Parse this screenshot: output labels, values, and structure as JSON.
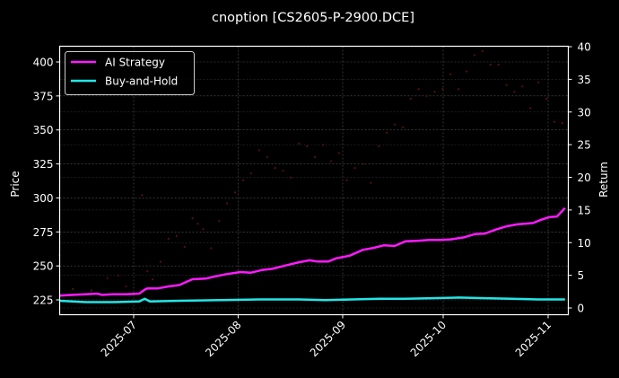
{
  "title": "cnoption [CS2605-P-2900.DCE]",
  "chart_data": {
    "type": "line",
    "title": "cnoption [CS2605-P-2900.DCE]",
    "xlabel": "",
    "ylabel_left": "Price",
    "ylabel_right": "Return",
    "x_ticks": [
      "2025-07",
      "2025-08",
      "2025-09",
      "2025-10",
      "2025-11"
    ],
    "x_range": [
      "2025-06-09",
      "2025-11-06"
    ],
    "ylim_left": [
      213,
      413
    ],
    "yticks_left": [
      225,
      250,
      275,
      300,
      325,
      350,
      375,
      400
    ],
    "ylim_right": [
      -1,
      40
    ],
    "yticks_right": [
      0,
      5,
      10,
      15,
      20,
      25,
      30,
      35,
      40
    ],
    "grid": true,
    "legend_position": "upper left",
    "legend": [
      "AI Strategy",
      "Buy-and-Hold"
    ],
    "series": [
      {
        "name": "AI Strategy",
        "axis": "right",
        "color": "#ff1aff",
        "x_days": [
          0,
          5,
          10,
          14,
          16,
          20,
          25,
          30,
          32,
          33,
          37,
          41,
          45,
          50,
          55,
          58,
          63,
          68,
          72,
          76,
          80,
          85,
          90,
          94,
          97,
          101,
          104,
          109,
          114,
          118,
          122,
          126,
          130,
          135,
          139,
          143,
          147,
          152,
          156,
          160,
          164,
          168,
          172,
          178,
          181,
          184,
          187,
          190
        ],
        "values": [
          1.9,
          2.0,
          2.1,
          2.2,
          2.0,
          2.1,
          2.1,
          2.2,
          2.8,
          3.0,
          3.0,
          3.3,
          3.5,
          4.4,
          4.5,
          4.8,
          5.2,
          5.5,
          5.4,
          5.8,
          6.0,
          6.5,
          7.0,
          7.3,
          7.1,
          7.1,
          7.6,
          8.0,
          8.9,
          9.2,
          9.6,
          9.5,
          10.2,
          10.3,
          10.4,
          10.4,
          10.5,
          10.8,
          11.3,
          11.4,
          12.0,
          12.5,
          12.8,
          13.0,
          13.5,
          13.9,
          14.0,
          15.3
        ]
      },
      {
        "name": "Buy-and-Hold",
        "axis": "right",
        "color": "#22e6e6",
        "x_days": [
          0,
          10,
          20,
          30,
          32,
          34,
          45,
          60,
          75,
          90,
          100,
          110,
          120,
          130,
          140,
          150,
          160,
          170,
          180,
          190
        ],
        "values": [
          1.1,
          0.9,
          0.9,
          1.0,
          1.4,
          1.0,
          1.1,
          1.2,
          1.3,
          1.3,
          1.2,
          1.3,
          1.4,
          1.4,
          1.5,
          1.6,
          1.5,
          1.4,
          1.3,
          1.3
        ]
      },
      {
        "name": "Price",
        "axis": "left",
        "type": "scatter",
        "color": "#5a1010",
        "x_days": [
          0,
          5,
          12,
          18,
          22,
          25,
          28,
          31,
          33,
          35,
          38,
          41,
          44,
          47,
          50,
          52,
          54,
          57,
          60,
          63,
          66,
          69,
          72,
          75,
          78,
          81,
          84,
          87,
          90,
          93,
          96,
          99,
          102,
          105,
          108,
          111,
          114,
          117,
          120,
          123,
          126,
          129,
          132,
          135,
          138,
          141,
          144,
          147,
          150,
          153,
          156,
          159,
          162,
          165,
          168,
          171,
          174,
          177,
          180,
          183,
          186,
          189
        ],
        "values": [
          258,
          233,
          232,
          241,
          243,
          235,
          230,
          302,
          246,
          240,
          253,
          270,
          272,
          264,
          285,
          281,
          277,
          263,
          283,
          296,
          304,
          313,
          318,
          335,
          330,
          322,
          320,
          315,
          340,
          338,
          330,
          339,
          327,
          333,
          313,
          322,
          325,
          311,
          338,
          348,
          354,
          352,
          373,
          380,
          375,
          378,
          380,
          391,
          380,
          393,
          405,
          408,
          398,
          398,
          383,
          378,
          382,
          366,
          385,
          373,
          356,
          355
        ]
      }
    ]
  }
}
